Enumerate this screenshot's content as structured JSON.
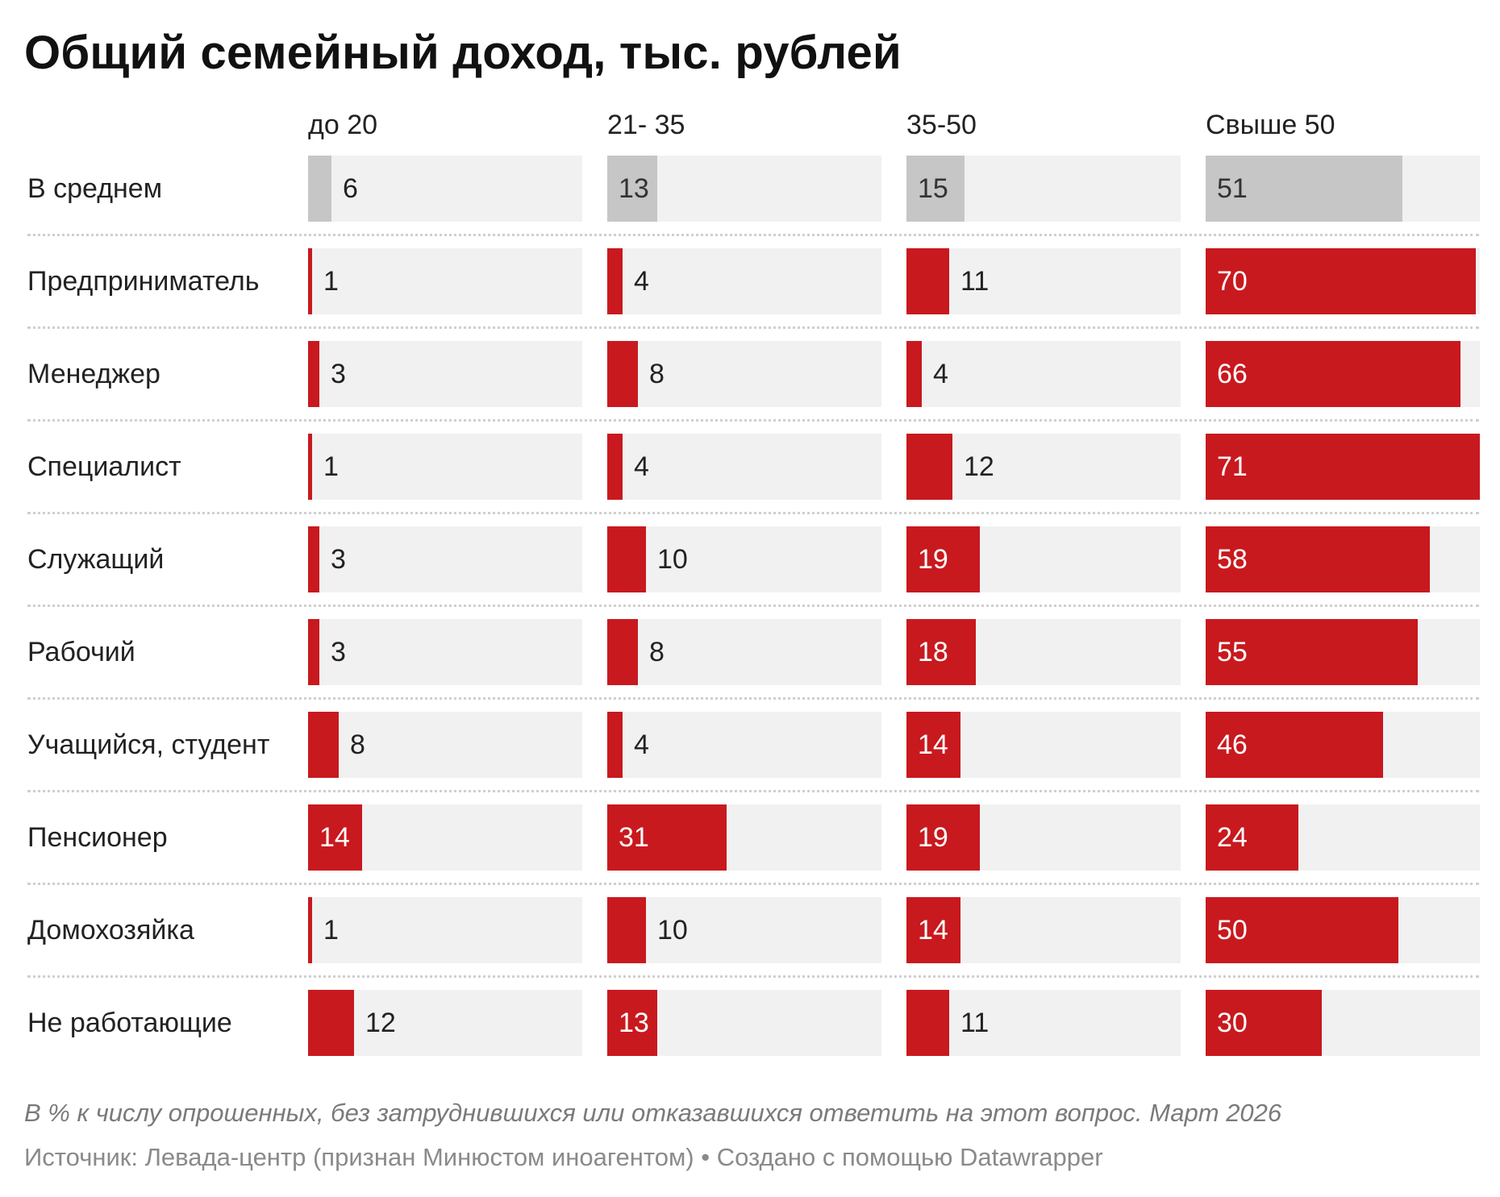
{
  "title": "Общий семейный доход, тыс. рублей",
  "notes": "В % к числу опрошенных, без затруднившихся или отказавшихся ответить на этот вопрос. Март 2026",
  "footer": {
    "source": "Источник: Левада-центр (признан Минюстом иноагентом)",
    "separator": " • ",
    "credit": "Создано с помощью Datawrapper"
  },
  "colors": {
    "highlight": "#c8191e",
    "average": "#c6c6c6",
    "track": "#f1f1f1"
  },
  "chart_data": {
    "type": "bar",
    "xlim": [
      0,
      71
    ],
    "columns": [
      "до 20",
      "21- 35",
      "35-50",
      "Свыше 50"
    ],
    "rows": [
      {
        "label": "В среднем",
        "values": [
          6,
          13,
          15,
          51
        ],
        "style": "average"
      },
      {
        "label": "Предприниматель",
        "values": [
          1,
          4,
          11,
          70
        ],
        "style": "highlight"
      },
      {
        "label": "Менеджер",
        "values": [
          3,
          8,
          4,
          66
        ],
        "style": "highlight"
      },
      {
        "label": "Специалист",
        "values": [
          1,
          4,
          12,
          71
        ],
        "style": "highlight"
      },
      {
        "label": "Служащий",
        "values": [
          3,
          10,
          19,
          58
        ],
        "style": "highlight"
      },
      {
        "label": "Рабочий",
        "values": [
          3,
          8,
          18,
          55
        ],
        "style": "highlight"
      },
      {
        "label": "Учащийся, студент",
        "values": [
          8,
          4,
          14,
          46
        ],
        "style": "highlight"
      },
      {
        "label": "Пенсионер",
        "values": [
          14,
          31,
          19,
          24
        ],
        "style": "highlight"
      },
      {
        "label": "Домохозяйка",
        "values": [
          1,
          10,
          14,
          50
        ],
        "style": "highlight"
      },
      {
        "label": "Не работающие",
        "values": [
          12,
          13,
          11,
          30
        ],
        "style": "highlight"
      }
    ]
  }
}
